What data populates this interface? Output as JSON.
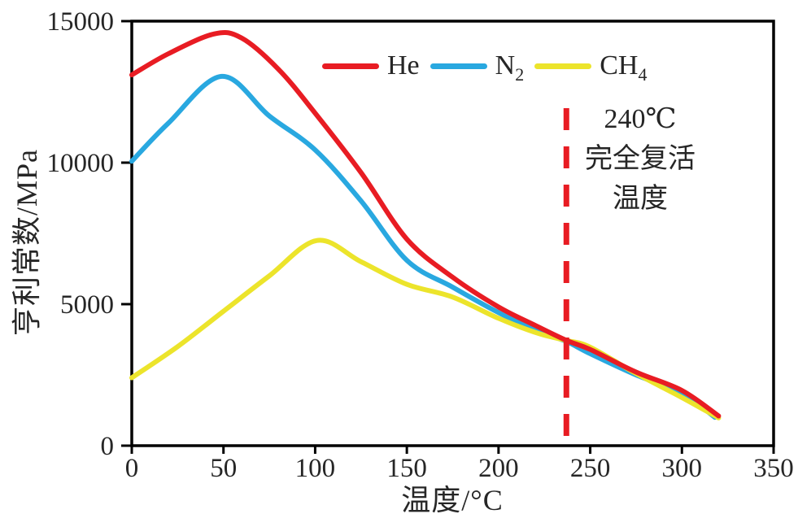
{
  "chart_data": {
    "type": "line",
    "title": "",
    "xlabel": "温度/°C",
    "ylabel": "亨利常数/MPa",
    "xlim": [
      0,
      350
    ],
    "ylim": [
      0,
      15000
    ],
    "xticks": [
      "0",
      "50",
      "100",
      "150",
      "200",
      "250",
      "300",
      "350"
    ],
    "xtick_values": [
      0,
      50,
      100,
      150,
      200,
      250,
      300,
      350
    ],
    "yticks": [
      "0",
      "5000",
      "10000",
      "15000"
    ],
    "ytick_values": [
      0,
      5000,
      10000,
      15000
    ],
    "grid": false,
    "legend_position": "top-center-inside",
    "series": [
      {
        "name": "He",
        "color": "#e81c23",
        "points": [
          [
            0,
            13100
          ],
          [
            20,
            13850
          ],
          [
            45,
            14550
          ],
          [
            60,
            14400
          ],
          [
            80,
            13300
          ],
          [
            100,
            11750
          ],
          [
            125,
            9650
          ],
          [
            150,
            7300
          ],
          [
            175,
            5950
          ],
          [
            200,
            4900
          ],
          [
            220,
            4250
          ],
          [
            237,
            3720
          ],
          [
            250,
            3400
          ],
          [
            275,
            2600
          ],
          [
            300,
            1950
          ],
          [
            320,
            1050
          ]
        ]
      },
      {
        "name": "N2",
        "color": "#29a8e0",
        "points": [
          [
            0,
            10050
          ],
          [
            20,
            11400
          ],
          [
            49,
            13050
          ],
          [
            75,
            11650
          ],
          [
            100,
            10450
          ],
          [
            125,
            8650
          ],
          [
            150,
            6550
          ],
          [
            175,
            5600
          ],
          [
            200,
            4700
          ],
          [
            220,
            4080
          ],
          [
            237,
            3680
          ],
          [
            250,
            3250
          ],
          [
            275,
            2500
          ],
          [
            300,
            1850
          ],
          [
            318,
            1000
          ]
        ]
      },
      {
        "name": "CH4",
        "color": "#ece42b",
        "points": [
          [
            0,
            2400
          ],
          [
            25,
            3500
          ],
          [
            50,
            4750
          ],
          [
            75,
            6000
          ],
          [
            101,
            7250
          ],
          [
            125,
            6500
          ],
          [
            150,
            5700
          ],
          [
            175,
            5250
          ],
          [
            200,
            4500
          ],
          [
            222,
            3960
          ],
          [
            237,
            3720
          ],
          [
            250,
            3480
          ],
          [
            275,
            2550
          ],
          [
            300,
            1700
          ],
          [
            320,
            980
          ]
        ]
      }
    ],
    "reference_line": {
      "x": 237,
      "style": "dashed",
      "color": "#e81c23",
      "label": "240℃ 完全复活 温度"
    }
  },
  "legend": {
    "items": [
      {
        "main": "He",
        "sub": ""
      },
      {
        "main": "N",
        "sub": "2"
      },
      {
        "main": "CH",
        "sub": "4"
      }
    ]
  },
  "annotation": {
    "line1": "240℃",
    "line2": "完全复活",
    "line3": "温度"
  },
  "axes": {
    "x_title": "温度/°C",
    "y_title": "亨利常数/MPa"
  },
  "colors": {
    "he": "#e81c23",
    "n2": "#29a8e0",
    "ch4": "#ece42b",
    "axis": "#000000",
    "text": "#262626",
    "dashed_line": "#e81c23"
  }
}
